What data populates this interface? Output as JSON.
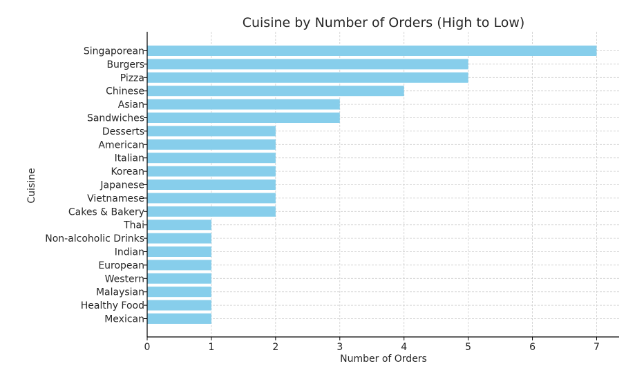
{
  "chart_data": {
    "type": "bar",
    "orientation": "horizontal",
    "title": "Cuisine by Number of Orders (High to Low)",
    "xlabel": "Number of Orders",
    "ylabel": "Cuisine",
    "categories": [
      "Singaporean",
      "Burgers",
      "Pizza",
      "Chinese",
      "Asian",
      "Sandwiches",
      "Desserts",
      "American",
      "Italian",
      "Korean",
      "Japanese",
      "Vietnamese",
      "Cakes & Bakery",
      "Thai",
      "Non-alcoholic Drinks",
      "Indian",
      "European",
      "Western",
      "Malaysian",
      "Healthy Food",
      "Mexican"
    ],
    "values": [
      7,
      5,
      5,
      4,
      3,
      3,
      2,
      2,
      2,
      2,
      2,
      2,
      2,
      1,
      1,
      1,
      1,
      1,
      1,
      1,
      1
    ],
    "xlim": [
      0,
      7.35
    ],
    "xticks": [
      0,
      1,
      2,
      3,
      4,
      5,
      6,
      7
    ],
    "grid": true,
    "bar_color": "#87CEEB",
    "grid_color": "#cccccc"
  }
}
